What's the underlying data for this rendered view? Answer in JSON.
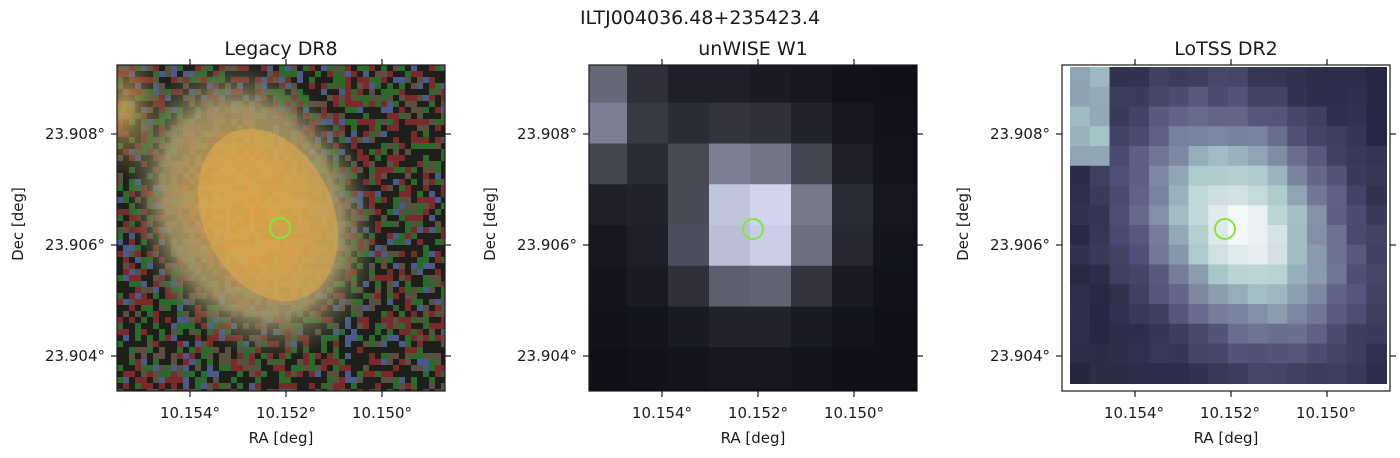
{
  "figure": {
    "title": "ILTJ004036.48+235423.4"
  },
  "panels": [
    {
      "title": "Legacy DR8",
      "image": "color-optical-galaxy-cutout",
      "x_ticks": [
        "10.154°",
        "10.152°",
        "10.150°"
      ],
      "y_ticks": [
        "23.908°",
        "23.906°",
        "23.904°"
      ],
      "xlabel": "RA [deg]",
      "ylabel": "Dec [deg]"
    },
    {
      "title": "unWISE W1",
      "image": "grayscale-infrared-pixelated-cutout",
      "x_ticks": [
        "10.154°",
        "10.152°",
        "10.150°"
      ],
      "y_ticks": [
        "23.908°",
        "23.906°",
        "23.904°"
      ],
      "xlabel": "RA [deg]",
      "ylabel": "Dec [deg]"
    },
    {
      "title": "LoTSS DR2",
      "image": "bone-colormap-radio-cutout",
      "x_ticks": [
        "10.154°",
        "10.152°",
        "10.150°"
      ],
      "y_ticks": [
        "23.908°",
        "23.906°",
        "23.904°"
      ],
      "xlabel": "RA [deg]",
      "ylabel": "Dec [deg]"
    }
  ],
  "marker": {
    "shape": "circle",
    "color": "#7fe83a",
    "ra": 10.152,
    "dec": 23.9063
  }
}
